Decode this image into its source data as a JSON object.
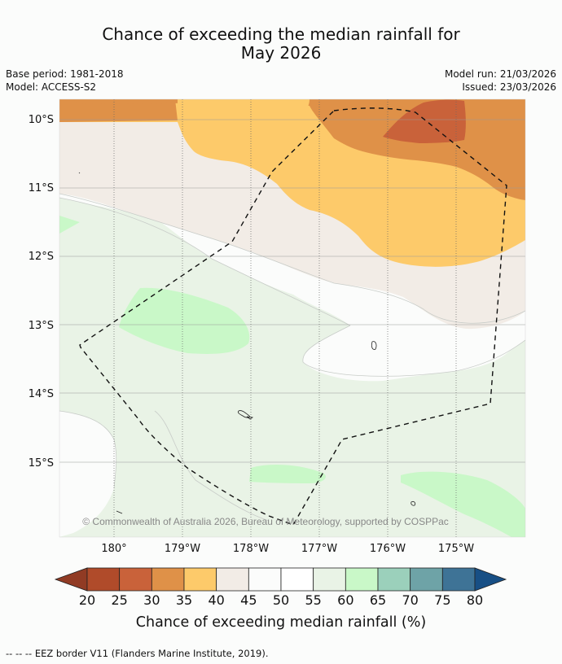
{
  "title": {
    "line1": "Chance of exceeding the median rainfall for",
    "line2": "May 2026"
  },
  "meta": {
    "base_period": "Base period: 1981-2018",
    "model": "Model: ACCESS-S2",
    "model_run": "Model run: 21/03/2026",
    "issued": "Issued: 23/03/2026"
  },
  "map": {
    "lat_labels": [
      "10°S",
      "11°S",
      "12°S",
      "13°S",
      "14°S",
      "15°S"
    ],
    "lon_labels": [
      "180°",
      "179°W",
      "178°W",
      "177°W",
      "176°W",
      "175°W"
    ],
    "copyright": "© Commonwealth of Australia 2026, Bureau of Meteorology, supported by COSPPac"
  },
  "colorbar": {
    "ticks": [
      "20",
      "25",
      "30",
      "35",
      "40",
      "45",
      "50",
      "55",
      "60",
      "65",
      "70",
      "75",
      "80"
    ],
    "colors": [
      "#b04b2a",
      "#c9623a",
      "#df9148",
      "#fdca6a",
      "#f2ece6",
      "#fbfcfb",
      "#ffffff",
      "#e9f3e6",
      "#c9f8c8",
      "#9bd0bb",
      "#6ea3a7",
      "#3e7396"
    ],
    "under_color": "#913b24",
    "over_color": "#174f85",
    "label": "Chance of exceeding median rainfall (%)"
  },
  "legend": {
    "eez_note": "--  --  -- EEZ border V11 (Flanders Marine Institute, 2019)."
  }
}
